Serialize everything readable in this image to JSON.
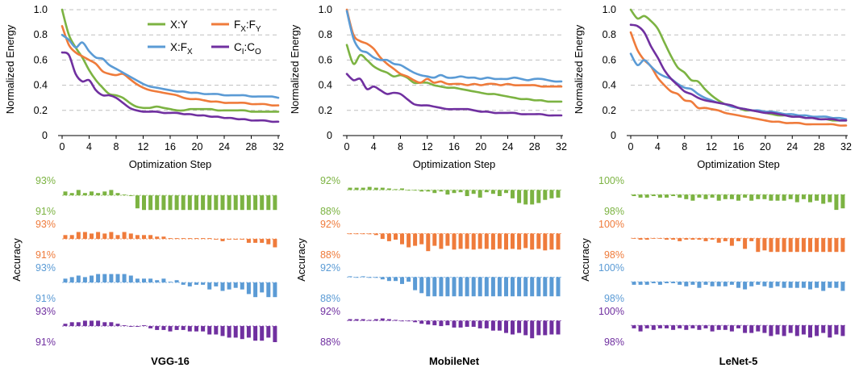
{
  "colors": {
    "X:Y": "#7cb342",
    "FX:FY": "#ef7b3b",
    "X:FX": "#5b9bd5",
    "CI:CO": "#7030a0",
    "grid": "#bfbfbf",
    "axis": "#000000"
  },
  "shared": {
    "energy_ylabel": "Normalized Energy",
    "accuracy_ylabel": "Accuracy",
    "xlabel": "Optimization Step",
    "energy_yticks": [
      "0",
      "0.2",
      "0.4",
      "0.6",
      "0.8",
      "1.0"
    ],
    "xticks": [
      "0",
      "4",
      "8",
      "12",
      "16",
      "20",
      "24",
      "28",
      "32"
    ]
  },
  "legend": [
    {
      "key": "X:Y",
      "base": "X:Y",
      "sub": ""
    },
    {
      "key": "FX:FY",
      "parts": [
        [
          "F",
          ""
        ],
        [
          "X",
          "sub"
        ],
        [
          ":F",
          ""
        ],
        [
          "Y",
          "sub"
        ]
      ]
    },
    {
      "key": "X:FX",
      "parts": [
        [
          "X:F",
          ""
        ],
        [
          "X",
          "sub"
        ]
      ]
    },
    {
      "key": "CI:CO",
      "parts": [
        [
          "C",
          ""
        ],
        [
          "I",
          "sub"
        ],
        [
          ":C",
          ""
        ],
        [
          "O",
          "sub"
        ]
      ]
    }
  ],
  "chart_data": [
    {
      "type": "line",
      "name": "VGG-16",
      "x": [
        0,
        1,
        2,
        3,
        4,
        5,
        6,
        7,
        8,
        9,
        10,
        11,
        12,
        13,
        14,
        15,
        16,
        17,
        18,
        19,
        20,
        21,
        22,
        23,
        24,
        25,
        26,
        27,
        28,
        29,
        30,
        31,
        32
      ],
      "ylim": [
        0,
        1.0
      ],
      "series": [
        {
          "name": "X:Y",
          "values": [
            1.0,
            0.8,
            0.7,
            0.62,
            0.52,
            0.44,
            0.38,
            0.33,
            0.32,
            0.3,
            0.26,
            0.23,
            0.22,
            0.22,
            0.23,
            0.22,
            0.21,
            0.2,
            0.2,
            0.21,
            0.21,
            0.21,
            0.21,
            0.2,
            0.2,
            0.2,
            0.2,
            0.2,
            0.19,
            0.19,
            0.19,
            0.19,
            0.19
          ]
        },
        {
          "name": "FX:FY",
          "values": [
            0.87,
            0.72,
            0.66,
            0.63,
            0.6,
            0.57,
            0.51,
            0.49,
            0.48,
            0.49,
            0.45,
            0.41,
            0.38,
            0.36,
            0.35,
            0.34,
            0.33,
            0.32,
            0.3,
            0.29,
            0.29,
            0.28,
            0.27,
            0.27,
            0.26,
            0.26,
            0.26,
            0.26,
            0.25,
            0.25,
            0.25,
            0.24,
            0.24
          ]
        },
        {
          "name": "X:FX",
          "values": [
            0.8,
            0.76,
            0.7,
            0.74,
            0.67,
            0.62,
            0.61,
            0.56,
            0.53,
            0.5,
            0.47,
            0.44,
            0.41,
            0.39,
            0.38,
            0.37,
            0.36,
            0.35,
            0.35,
            0.34,
            0.34,
            0.33,
            0.33,
            0.33,
            0.32,
            0.32,
            0.32,
            0.32,
            0.31,
            0.31,
            0.31,
            0.31,
            0.3
          ]
        },
        {
          "name": "CI:CO",
          "values": [
            0.66,
            0.64,
            0.49,
            0.43,
            0.44,
            0.36,
            0.32,
            0.32,
            0.3,
            0.26,
            0.22,
            0.2,
            0.19,
            0.19,
            0.19,
            0.18,
            0.18,
            0.18,
            0.17,
            0.17,
            0.16,
            0.16,
            0.15,
            0.15,
            0.14,
            0.14,
            0.13,
            0.13,
            0.12,
            0.12,
            0.12,
            0.11,
            0.11
          ]
        }
      ]
    },
    {
      "type": "line",
      "name": "MobileNet",
      "x": [
        0,
        1,
        2,
        3,
        4,
        5,
        6,
        7,
        8,
        9,
        10,
        11,
        12,
        13,
        14,
        15,
        16,
        17,
        18,
        19,
        20,
        21,
        22,
        23,
        24,
        25,
        26,
        27,
        28,
        29,
        30,
        31,
        32
      ],
      "ylim": [
        0,
        1.0
      ],
      "series": [
        {
          "name": "X:Y",
          "values": [
            0.72,
            0.57,
            0.64,
            0.6,
            0.55,
            0.52,
            0.5,
            0.47,
            0.48,
            0.46,
            0.42,
            0.42,
            0.42,
            0.4,
            0.39,
            0.38,
            0.38,
            0.37,
            0.36,
            0.35,
            0.34,
            0.33,
            0.33,
            0.32,
            0.31,
            0.3,
            0.29,
            0.29,
            0.28,
            0.28,
            0.27,
            0.27,
            0.27
          ]
        },
        {
          "name": "FX:FY",
          "values": [
            1.0,
            0.8,
            0.75,
            0.73,
            0.69,
            0.62,
            0.57,
            0.53,
            0.49,
            0.47,
            0.44,
            0.42,
            0.45,
            0.42,
            0.43,
            0.41,
            0.41,
            0.41,
            0.4,
            0.41,
            0.4,
            0.41,
            0.41,
            0.4,
            0.41,
            0.4,
            0.4,
            0.4,
            0.4,
            0.39,
            0.39,
            0.39,
            0.39
          ]
        },
        {
          "name": "X:FX",
          "values": [
            0.99,
            0.77,
            0.68,
            0.66,
            0.62,
            0.6,
            0.6,
            0.57,
            0.56,
            0.53,
            0.5,
            0.48,
            0.47,
            0.46,
            0.48,
            0.46,
            0.46,
            0.47,
            0.46,
            0.46,
            0.45,
            0.46,
            0.45,
            0.45,
            0.45,
            0.46,
            0.45,
            0.44,
            0.45,
            0.45,
            0.44,
            0.43,
            0.43
          ]
        },
        {
          "name": "CI:CO",
          "values": [
            0.49,
            0.44,
            0.45,
            0.37,
            0.39,
            0.36,
            0.33,
            0.34,
            0.33,
            0.29,
            0.25,
            0.24,
            0.24,
            0.23,
            0.22,
            0.21,
            0.21,
            0.21,
            0.21,
            0.2,
            0.19,
            0.19,
            0.18,
            0.18,
            0.18,
            0.18,
            0.17,
            0.17,
            0.17,
            0.17,
            0.16,
            0.16,
            0.16
          ]
        }
      ]
    },
    {
      "type": "line",
      "name": "LeNet-5",
      "x": [
        0,
        1,
        2,
        3,
        4,
        5,
        6,
        7,
        8,
        9,
        10,
        11,
        12,
        13,
        14,
        15,
        16,
        17,
        18,
        19,
        20,
        21,
        22,
        23,
        24,
        25,
        26,
        27,
        28,
        29,
        30,
        31,
        32
      ],
      "ylim": [
        0,
        1.0
      ],
      "series": [
        {
          "name": "X:Y",
          "values": [
            1.0,
            0.93,
            0.95,
            0.91,
            0.85,
            0.74,
            0.63,
            0.54,
            0.5,
            0.44,
            0.43,
            0.37,
            0.32,
            0.28,
            0.25,
            0.23,
            0.22,
            0.2,
            0.2,
            0.19,
            0.18,
            0.17,
            0.16,
            0.16,
            0.15,
            0.15,
            0.14,
            0.14,
            0.13,
            0.13,
            0.12,
            0.12,
            0.12
          ]
        },
        {
          "name": "FX:FY",
          "values": [
            0.82,
            0.68,
            0.6,
            0.55,
            0.46,
            0.4,
            0.35,
            0.33,
            0.28,
            0.27,
            0.22,
            0.22,
            0.21,
            0.2,
            0.18,
            0.17,
            0.16,
            0.15,
            0.14,
            0.13,
            0.12,
            0.11,
            0.11,
            0.1,
            0.1,
            0.1,
            0.09,
            0.09,
            0.09,
            0.09,
            0.09,
            0.08,
            0.08
          ]
        },
        {
          "name": "X:FX",
          "values": [
            0.65,
            0.56,
            0.6,
            0.55,
            0.5,
            0.47,
            0.45,
            0.41,
            0.38,
            0.37,
            0.33,
            0.3,
            0.28,
            0.26,
            0.25,
            0.23,
            0.22,
            0.21,
            0.2,
            0.2,
            0.19,
            0.19,
            0.18,
            0.17,
            0.17,
            0.16,
            0.16,
            0.15,
            0.15,
            0.15,
            0.14,
            0.14,
            0.13
          ]
        },
        {
          "name": "CI:CO",
          "values": [
            0.88,
            0.87,
            0.82,
            0.71,
            0.62,
            0.52,
            0.45,
            0.4,
            0.35,
            0.33,
            0.3,
            0.28,
            0.27,
            0.26,
            0.25,
            0.24,
            0.22,
            0.21,
            0.2,
            0.19,
            0.18,
            0.18,
            0.17,
            0.16,
            0.15,
            0.15,
            0.14,
            0.14,
            0.13,
            0.13,
            0.13,
            0.12,
            0.12
          ]
        }
      ]
    },
    {
      "type": "bar",
      "name": "VGG-16 accuracy",
      "ticks": [
        "93%",
        "91%"
      ],
      "ylim": [
        91,
        93
      ],
      "baseline": 92.05,
      "series": [
        {
          "name": "X:Y",
          "values": [
            92.3,
            92.2,
            92.4,
            92.2,
            92.3,
            92.2,
            92.3,
            92.4,
            92.2,
            92.1,
            92.0,
            91.2,
            91.1,
            91.1,
            91.1,
            91.1,
            91.1,
            91.1,
            91.1,
            91.1,
            91.1,
            91.1,
            91.1,
            91.1,
            91.1,
            91.1,
            91.1,
            91.1,
            91.1,
            91.1,
            91.1,
            91.1,
            91.1
          ]
        },
        {
          "name": "FX:FY",
          "values": [
            92.3,
            92.3,
            92.5,
            92.5,
            92.4,
            92.5,
            92.4,
            92.5,
            92.3,
            92.5,
            92.4,
            92.3,
            92.3,
            92.3,
            92.2,
            92.2,
            92.1,
            92.1,
            92.1,
            92.1,
            92.1,
            92.1,
            92.1,
            92.0,
            91.9,
            92.0,
            92.0,
            92.0,
            91.8,
            91.8,
            91.8,
            91.7,
            91.5
          ]
        },
        {
          "name": "X:FX",
          "values": [
            92.3,
            92.4,
            92.5,
            92.4,
            92.5,
            92.6,
            92.6,
            92.6,
            92.6,
            92.6,
            92.5,
            92.3,
            92.3,
            92.3,
            92.2,
            92.3,
            92.1,
            92.2,
            91.9,
            91.8,
            91.9,
            91.9,
            91.6,
            91.8,
            91.5,
            91.6,
            91.7,
            91.6,
            91.3,
            91.1,
            91.4,
            91.1,
            91.1
          ]
        },
        {
          "name": "CI:CO",
          "values": [
            92.2,
            92.3,
            92.3,
            92.4,
            92.4,
            92.4,
            92.3,
            92.3,
            92.2,
            92.1,
            92.0,
            92.0,
            92.1,
            91.9,
            91.8,
            91.8,
            91.7,
            91.8,
            91.8,
            91.7,
            91.7,
            91.7,
            91.5,
            91.5,
            91.4,
            91.3,
            91.3,
            91.2,
            91.3,
            91.1,
            91.1,
            91.3,
            91.0
          ]
        }
      ]
    },
    {
      "type": "bar",
      "name": "MobileNet accuracy",
      "ticks": [
        "92%",
        "88%"
      ],
      "ylim": [
        88,
        92
      ],
      "baseline": 90.8,
      "series": [
        {
          "name": "X:Y",
          "values": [
            91.1,
            91.1,
            91.1,
            91.2,
            91.1,
            91.1,
            91.0,
            90.9,
            91.0,
            90.8,
            90.8,
            90.6,
            90.6,
            90.4,
            90.6,
            90.2,
            90.4,
            90.5,
            90.0,
            90.3,
            89.8,
            90.5,
            90.3,
            90.0,
            90.4,
            89.7,
            89.1,
            88.9,
            88.9,
            89.1,
            89.5,
            89.7,
            89.8
          ]
        },
        {
          "name": "FX:FY",
          "values": [
            90.8,
            90.8,
            90.8,
            90.7,
            90.6,
            90.1,
            89.8,
            90.0,
            89.4,
            89.0,
            89.2,
            89.4,
            88.5,
            89.2,
            88.8,
            89.2,
            88.7,
            88.8,
            88.8,
            88.7,
            88.8,
            88.8,
            88.7,
            88.8,
            88.7,
            88.8,
            88.7,
            88.9,
            88.7,
            88.8,
            88.6,
            88.7,
            88.7
          ]
        },
        {
          "name": "X:FX",
          "values": [
            90.9,
            90.8,
            90.9,
            90.7,
            90.7,
            90.5,
            90.3,
            90.3,
            89.9,
            90.2,
            89.1,
            88.7,
            88.3,
            88.3,
            88.3,
            88.3,
            88.3,
            88.3,
            88.3,
            88.3,
            88.3,
            88.3,
            88.3,
            88.3,
            88.3,
            88.3,
            88.3,
            88.3,
            88.3,
            88.3,
            88.3,
            88.3,
            88.3
          ]
        },
        {
          "name": "CI:CO",
          "values": [
            91.0,
            91.0,
            91.0,
            90.9,
            91.0,
            91.1,
            91.0,
            90.9,
            90.8,
            90.8,
            90.6,
            90.4,
            90.3,
            90.2,
            90.1,
            90.2,
            89.9,
            89.9,
            90.0,
            90.0,
            89.8,
            89.8,
            89.5,
            89.5,
            89.2,
            89.0,
            89.2,
            88.9,
            88.5,
            88.9,
            88.9,
            89.0,
            89.0
          ]
        }
      ]
    },
    {
      "type": "bar",
      "name": "LeNet-5 accuracy",
      "ticks": [
        "100%",
        "98%"
      ],
      "ylim": [
        98,
        100
      ],
      "baseline": 99.1,
      "series": [
        {
          "name": "X:Y",
          "values": [
            99.0,
            98.9,
            98.9,
            99.0,
            98.9,
            98.9,
            99.0,
            98.9,
            98.8,
            98.7,
            98.9,
            98.8,
            98.9,
            98.7,
            98.8,
            98.8,
            98.7,
            98.9,
            98.7,
            98.8,
            98.8,
            98.7,
            98.7,
            98.7,
            98.8,
            98.6,
            98.8,
            98.6,
            98.7,
            98.5,
            98.6,
            98.1,
            98.2
          ]
        },
        {
          "name": "FX:FY",
          "values": [
            99.1,
            99.0,
            99.0,
            99.1,
            99.1,
            99.0,
            99.0,
            98.9,
            99.0,
            99.0,
            99.0,
            98.9,
            99.0,
            98.8,
            98.9,
            98.6,
            98.9,
            98.4,
            98.9,
            98.2,
            98.3,
            98.2,
            98.2,
            98.2,
            98.2,
            98.2,
            98.2,
            98.2,
            98.2,
            98.2,
            98.2,
            98.2,
            98.2
          ]
        },
        {
          "name": "X:FX",
          "values": [
            98.9,
            98.9,
            98.9,
            99.0,
            98.9,
            99.0,
            99.0,
            98.9,
            98.8,
            98.9,
            98.7,
            98.9,
            98.8,
            98.8,
            98.8,
            98.9,
            98.7,
            98.6,
            98.8,
            98.9,
            98.8,
            98.7,
            98.8,
            98.7,
            98.7,
            98.7,
            98.7,
            98.6,
            98.7,
            98.5,
            98.7,
            98.7,
            98.5
          ]
        },
        {
          "name": "CI:CO",
          "values": [
            98.9,
            98.7,
            98.9,
            98.8,
            98.9,
            98.9,
            98.8,
            98.9,
            98.8,
            98.9,
            98.8,
            98.9,
            98.7,
            98.8,
            98.8,
            98.7,
            98.9,
            98.6,
            98.6,
            98.7,
            98.6,
            98.4,
            98.5,
            98.4,
            98.6,
            98.4,
            98.5,
            98.3,
            98.4,
            98.6,
            98.3,
            98.5,
            98.4
          ]
        }
      ]
    }
  ]
}
